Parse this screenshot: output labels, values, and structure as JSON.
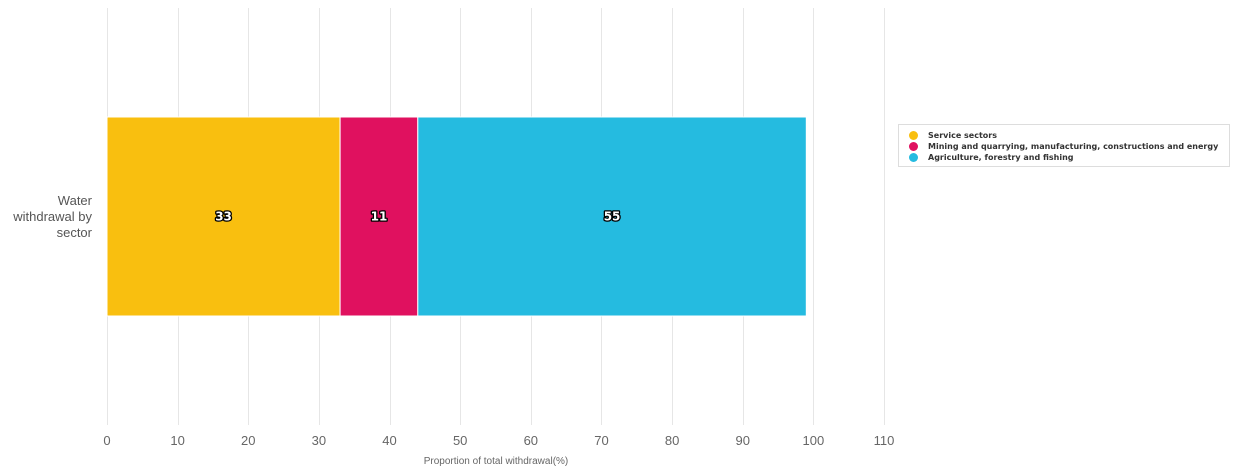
{
  "chart_data": {
    "type": "bar",
    "orientation": "horizontal",
    "stacked": true,
    "categories": [
      "Water withdrawal by sector"
    ],
    "series": [
      {
        "name": "Service sectors",
        "values": [
          33
        ],
        "color": "#f9bf0f"
      },
      {
        "name": "Mining and quarrying, manufacturing, constructions and energy",
        "values": [
          11
        ],
        "color": "#e0115f"
      },
      {
        "name": "Agriculture, forestry and fishing",
        "values": [
          55
        ],
        "color": "#25bbe0"
      }
    ],
    "title": "",
    "xlabel": "Proportion of total withdrawal(%)",
    "ylabel": "",
    "xlim": [
      0,
      110
    ],
    "xticks": [
      0,
      10,
      20,
      30,
      40,
      50,
      60,
      70,
      80,
      90,
      100,
      110
    ],
    "grid": true,
    "legend_position": "right"
  }
}
